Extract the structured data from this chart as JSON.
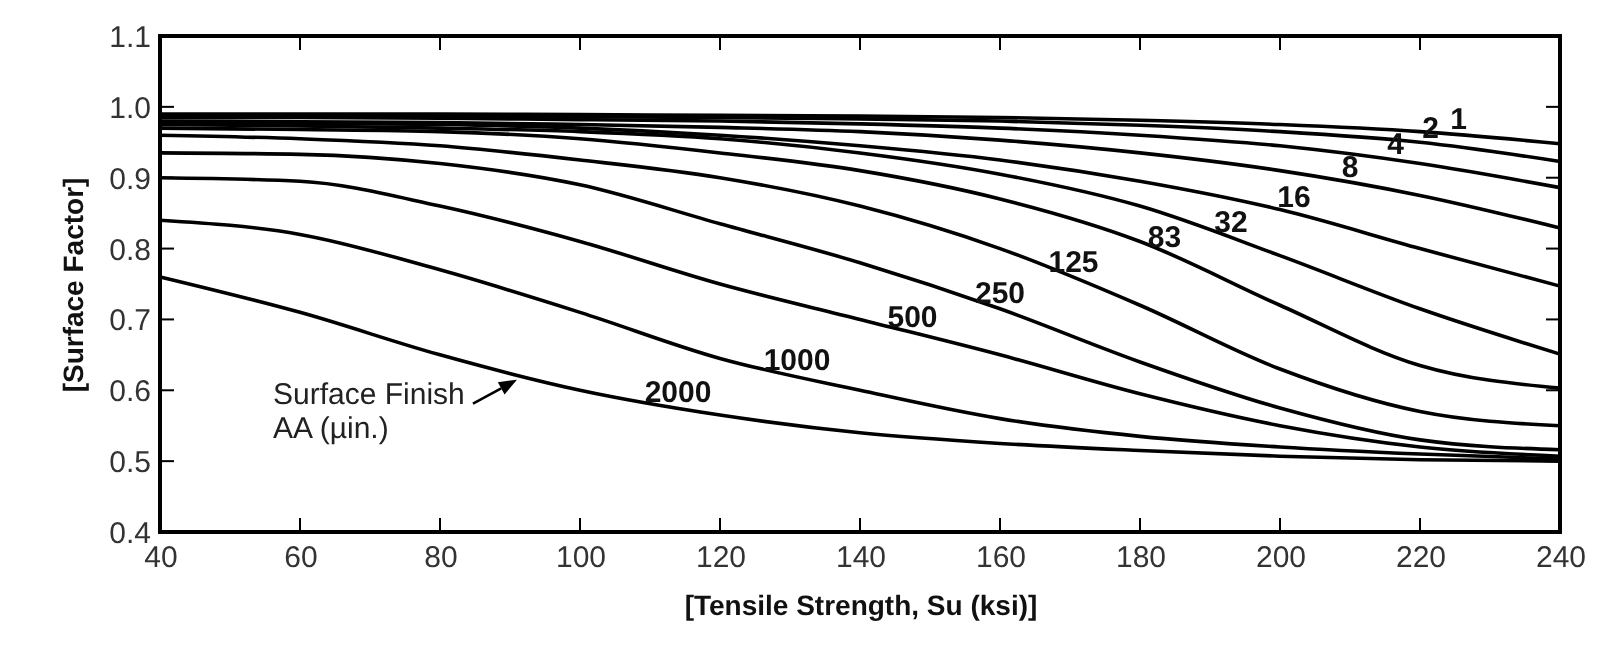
{
  "chart_data": {
    "type": "line",
    "xlabel": "[Tensile Strength, Su (ksi)]",
    "ylabel": "[Surface Factor]",
    "x": [
      40,
      60,
      80,
      100,
      120,
      140,
      160,
      180,
      200,
      220,
      240
    ],
    "series": [
      {
        "name": "1",
        "color": "#000000",
        "values": [
          0.99,
          0.99,
          0.99,
          0.989,
          0.988,
          0.987,
          0.985,
          0.981,
          0.975,
          0.965,
          0.948
        ]
      },
      {
        "name": "2",
        "color": "#000000",
        "values": [
          0.988,
          0.988,
          0.987,
          0.986,
          0.985,
          0.983,
          0.98,
          0.974,
          0.965,
          0.95,
          0.923
        ]
      },
      {
        "name": "4",
        "color": "#000000",
        "values": [
          0.985,
          0.985,
          0.984,
          0.982,
          0.98,
          0.976,
          0.97,
          0.96,
          0.945,
          0.92,
          0.886
        ]
      },
      {
        "name": "8",
        "color": "#000000",
        "values": [
          0.98,
          0.979,
          0.978,
          0.975,
          0.971,
          0.965,
          0.953,
          0.935,
          0.91,
          0.875,
          0.829
        ]
      },
      {
        "name": "16",
        "color": "#000000",
        "values": [
          0.978,
          0.977,
          0.975,
          0.97,
          0.96,
          0.945,
          0.925,
          0.895,
          0.855,
          0.8,
          0.747
        ]
      },
      {
        "name": "32",
        "color": "#000000",
        "values": [
          0.975,
          0.973,
          0.97,
          0.965,
          0.955,
          0.935,
          0.905,
          0.86,
          0.79,
          0.715,
          0.651
        ]
      },
      {
        "name": "83",
        "color": "#000000",
        "values": [
          0.97,
          0.968,
          0.965,
          0.955,
          0.935,
          0.91,
          0.87,
          0.81,
          0.72,
          0.635,
          0.603
        ]
      },
      {
        "name": "125",
        "color": "#000000",
        "values": [
          0.96,
          0.955,
          0.945,
          0.925,
          0.9,
          0.86,
          0.8,
          0.72,
          0.63,
          0.57,
          0.55
        ]
      },
      {
        "name": "250",
        "color": "#000000",
        "values": [
          0.935,
          0.933,
          0.92,
          0.89,
          0.835,
          0.78,
          0.715,
          0.64,
          0.575,
          0.53,
          0.516
        ]
      },
      {
        "name": "500",
        "color": "#000000",
        "values": [
          0.9,
          0.895,
          0.86,
          0.81,
          0.75,
          0.7,
          0.65,
          0.595,
          0.55,
          0.52,
          0.507
        ]
      },
      {
        "name": "1000",
        "color": "#000000",
        "values": [
          0.84,
          0.82,
          0.77,
          0.71,
          0.645,
          0.6,
          0.56,
          0.535,
          0.52,
          0.51,
          0.503
        ]
      },
      {
        "name": "2000",
        "color": "#000000",
        "values": [
          0.76,
          0.71,
          0.65,
          0.6,
          0.565,
          0.54,
          0.525,
          0.515,
          0.507,
          0.502,
          0.5
        ]
      }
    ],
    "xlim": [
      40,
      240
    ],
    "xticks": [
      40,
      60,
      80,
      100,
      120,
      140,
      160,
      180,
      200,
      220,
      240
    ],
    "ylim": [
      0.4,
      1.1
    ],
    "yticks": [
      {
        "value": 0.4,
        "label": "0.4"
      },
      {
        "value": 0.5,
        "label": "0.5"
      },
      {
        "value": 0.6,
        "label": "0.6"
      },
      {
        "value": 0.7,
        "label": "0.7"
      },
      {
        "value": 0.8,
        "label": "0.8"
      },
      {
        "value": 0.9,
        "label": "0.9"
      },
      {
        "value": 1.0,
        "label": "1.0"
      },
      {
        "value": 1.1,
        "label": "1.1"
      }
    ],
    "annotations": [
      {
        "text": "Surface Finish\nAA (µin.)",
        "x": 91,
        "y": 0.615
      }
    ],
    "grid": false,
    "marker": "none",
    "line_style": "solid"
  }
}
